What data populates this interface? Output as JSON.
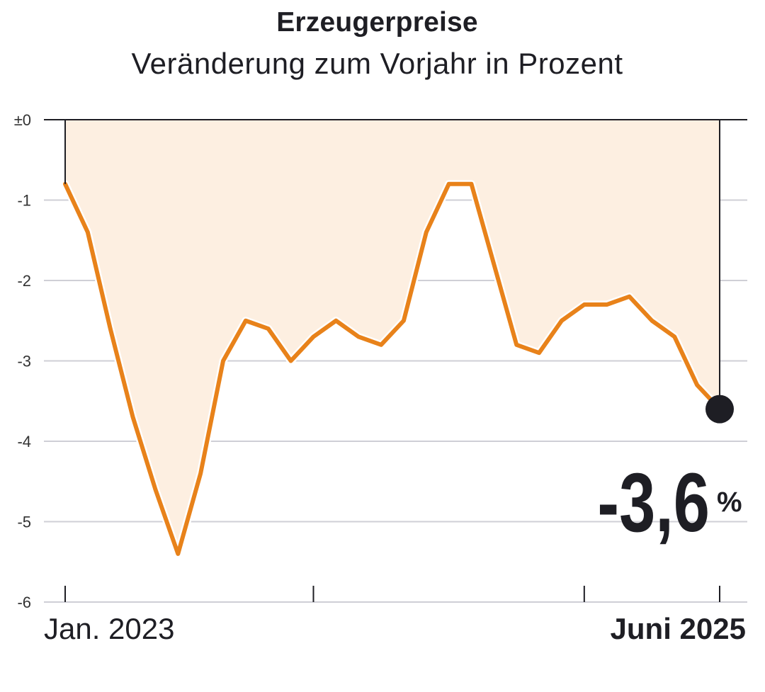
{
  "chart_data": {
    "type": "area",
    "title": "Erzeugerpreise",
    "subtitle": "Veränderung zum Vorjahr in Prozent",
    "xlabel": "",
    "ylabel": "",
    "ylim": [
      -6,
      0
    ],
    "y_ticks": [
      "±0",
      "-1",
      "-2",
      "-3",
      "-4",
      "-5",
      "-6"
    ],
    "y_tick_values": [
      0,
      -1,
      -2,
      -3,
      -4,
      -5,
      -6
    ],
    "x_start_label": "Jan. 2023",
    "x_end_label": "Juni 2025",
    "x_tick_indices": [
      0,
      11,
      23,
      29
    ],
    "grid": true,
    "series": [
      {
        "values": [
          -0.8,
          -1.4,
          -2.6,
          -3.7,
          -4.6,
          -5.4,
          -4.4,
          -3.0,
          -2.5,
          -2.6,
          -3.0,
          -2.7,
          -2.5,
          -2.7,
          -2.8,
          -2.5,
          -1.4,
          -0.8,
          -0.8,
          -1.8,
          -2.8,
          -2.9,
          -2.5,
          -2.3,
          -2.3,
          -2.2,
          -2.5,
          -2.7,
          -3.3,
          -3.6
        ]
      }
    ],
    "callout": {
      "value": "-3,6",
      "unit": "%"
    },
    "colors": {
      "line": "#e8821a",
      "fill": "#fdefe1",
      "dark": "#1e1e24",
      "grid": "#cfcfd6"
    }
  }
}
